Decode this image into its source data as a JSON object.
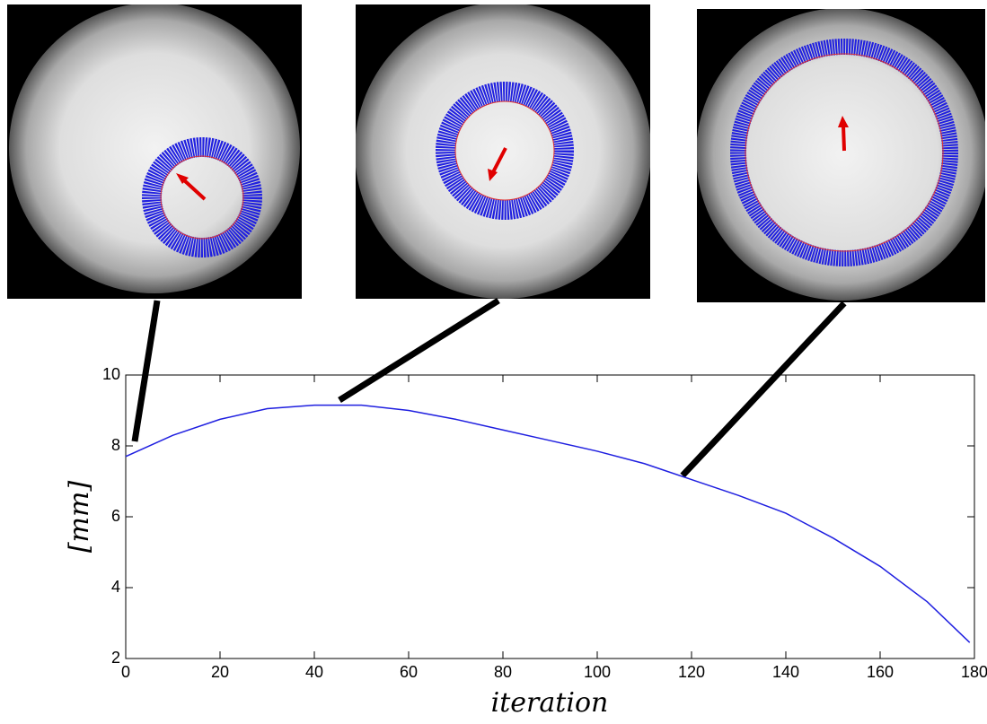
{
  "chart_data": {
    "type": "line",
    "x_label": "iteration",
    "y_label": "[mm]",
    "x": [
      0,
      10,
      20,
      30,
      40,
      50,
      60,
      70,
      80,
      90,
      100,
      110,
      120,
      130,
      140,
      150,
      160,
      170,
      179
    ],
    "series": [
      {
        "color": "#1f1fe0",
        "values": [
          7.7,
          8.3,
          8.75,
          9.05,
          9.15,
          9.15,
          9.0,
          8.75,
          8.45,
          8.15,
          7.85,
          7.5,
          7.05,
          6.6,
          6.1,
          5.4,
          4.6,
          3.6,
          2.45
        ]
      }
    ],
    "xlim": [
      0,
      180
    ],
    "xticks": [
      0,
      20,
      40,
      60,
      80,
      100,
      120,
      140,
      160,
      180
    ],
    "ylim": [
      2,
      10
    ],
    "yticks": [
      2,
      4,
      6,
      8,
      10
    ],
    "grid": false
  }
}
